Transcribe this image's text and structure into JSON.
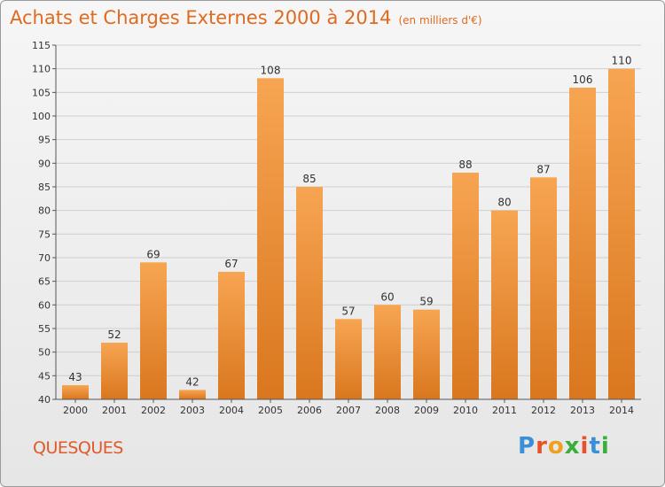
{
  "title": "Achats et Charges Externes 2000 à 2014",
  "unit_note": "(en milliers d'€)",
  "commune": "QUESQUES",
  "logo": {
    "text": "Proxiti",
    "colors": [
      "#3a8fd8",
      "#e8522a",
      "#f0a020",
      "#3aae3a",
      "#e8522a",
      "#3a8fd8",
      "#3aae3a"
    ]
  },
  "colors": {
    "bar_top": "#f7a552",
    "bar_bottom": "#d9771e",
    "title": "#e06a20",
    "grid": "#cfcfcf"
  },
  "chart_data": {
    "type": "bar",
    "title": "Achats et Charges Externes 2000 à 2014",
    "categories": [
      "2000",
      "2001",
      "2002",
      "2003",
      "2004",
      "2005",
      "2006",
      "2007",
      "2008",
      "2009",
      "2010",
      "2011",
      "2012",
      "2013",
      "2014"
    ],
    "values": [
      43,
      52,
      69,
      42,
      67,
      108,
      85,
      57,
      60,
      59,
      88,
      80,
      87,
      106,
      110
    ],
    "ylim": [
      40,
      115
    ],
    "yticks": [
      40,
      45,
      50,
      55,
      60,
      65,
      70,
      75,
      80,
      85,
      90,
      95,
      100,
      105,
      110,
      115
    ],
    "grid": true,
    "xlabel": "",
    "ylabel": ""
  }
}
